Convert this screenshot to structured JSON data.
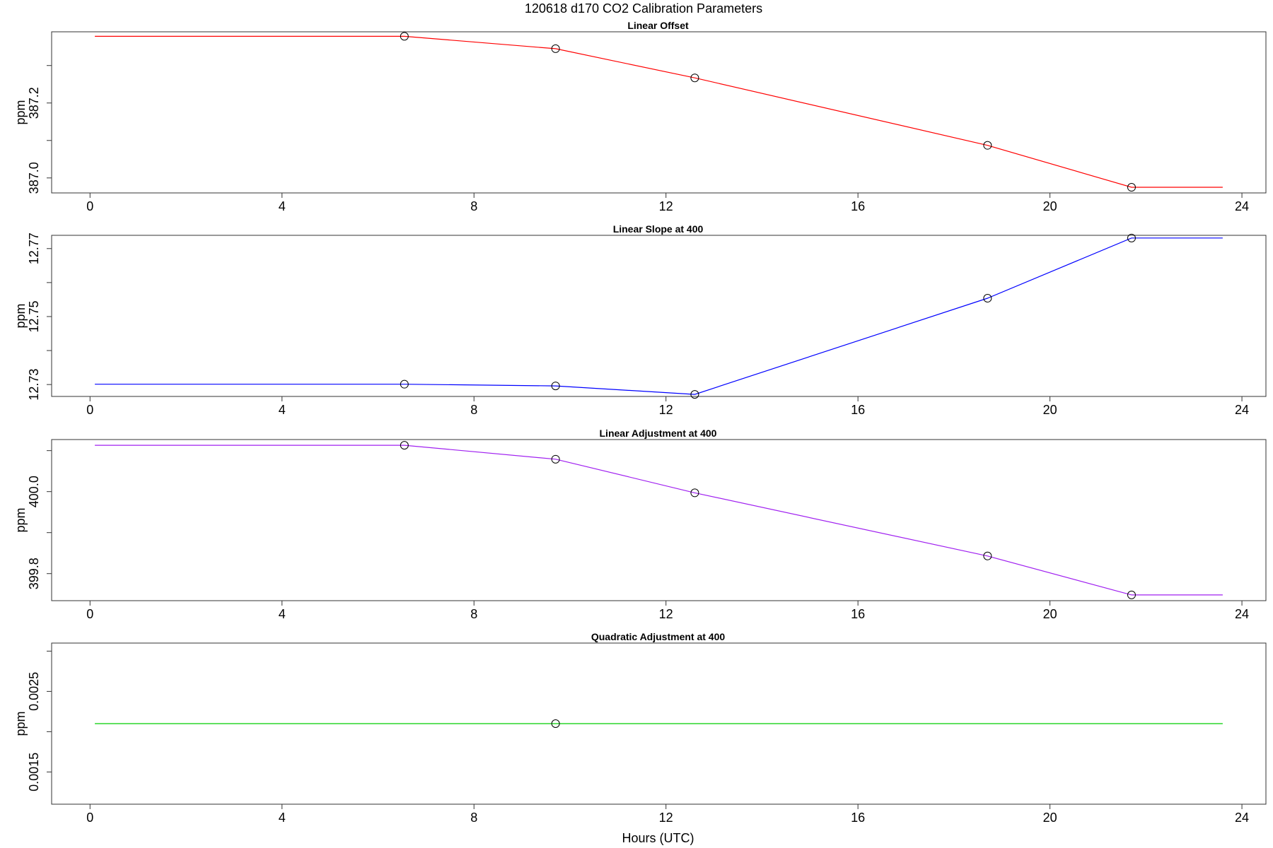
{
  "figure_title": "120618   d170   CO2 Calibration Parameters",
  "chart_data": [
    {
      "type": "line",
      "title": "Linear Offset",
      "xlabel": "",
      "ylabel": "ppm",
      "xlim": [
        -0.8,
        24.5
      ],
      "ylim": [
        386.96,
        387.39
      ],
      "xticks": [
        0,
        4,
        8,
        12,
        16,
        20,
        24
      ],
      "yticks_labeled": [
        {
          "value": 387.0,
          "label": "387.0"
        },
        {
          "value": 387.2,
          "label": "387.2"
        }
      ],
      "yticks_minor": [
        387.1,
        387.3
      ],
      "color": "#ff0000",
      "line_x": [
        0.1,
        6.55,
        9.7,
        12.6,
        18.7,
        21.7,
        23.6
      ],
      "line_y": [
        387.378,
        387.378,
        387.345,
        387.267,
        387.087,
        386.975,
        386.975
      ],
      "points": [
        {
          "x": 6.55,
          "y": 387.378
        },
        {
          "x": 9.7,
          "y": 387.345
        },
        {
          "x": 12.6,
          "y": 387.267
        },
        {
          "x": 18.7,
          "y": 387.087
        },
        {
          "x": 21.7,
          "y": 386.975
        }
      ]
    },
    {
      "type": "line",
      "title": "Linear Slope at 400",
      "xlabel": "",
      "ylabel": "ppm",
      "xlim": [
        -0.8,
        24.5
      ],
      "ylim": [
        12.7265,
        12.7739
      ],
      "xticks": [
        0,
        4,
        8,
        12,
        16,
        20,
        24
      ],
      "yticks_labeled": [
        {
          "value": 12.73,
          "label": "12.73"
        },
        {
          "value": 12.75,
          "label": "12.75"
        },
        {
          "value": 12.77,
          "label": "12.77"
        }
      ],
      "yticks_minor": [
        12.74,
        12.76
      ],
      "color": "#0000ff",
      "line_x": [
        0.1,
        6.55,
        9.7,
        12.6,
        18.7,
        21.7,
        23.6
      ],
      "line_y": [
        12.7301,
        12.7301,
        12.7296,
        12.7271,
        12.7554,
        12.7731,
        12.7731
      ],
      "points": [
        {
          "x": 6.55,
          "y": 12.7301
        },
        {
          "x": 9.7,
          "y": 12.7296
        },
        {
          "x": 12.6,
          "y": 12.7271
        },
        {
          "x": 18.7,
          "y": 12.7554
        },
        {
          "x": 21.7,
          "y": 12.7731
        }
      ]
    },
    {
      "type": "line",
      "title": "Linear Adjustment at 400",
      "xlabel": "",
      "ylabel": "ppm",
      "xlim": [
        -0.8,
        24.5
      ],
      "ylim": [
        399.734,
        400.127
      ],
      "xticks": [
        0,
        4,
        8,
        12,
        16,
        20,
        24
      ],
      "yticks_labeled": [
        {
          "value": 399.8,
          "label": "399.8"
        },
        {
          "value": 400.0,
          "label": "400.0"
        }
      ],
      "yticks_minor": [
        399.9,
        400.1
      ],
      "color": "#a020f0",
      "line_x": [
        0.1,
        6.55,
        9.7,
        12.6,
        18.7,
        21.7,
        23.6
      ],
      "line_y": [
        400.113,
        400.113,
        400.079,
        399.997,
        399.843,
        399.748,
        399.748
      ],
      "points": [
        {
          "x": 6.55,
          "y": 400.113
        },
        {
          "x": 9.7,
          "y": 400.079
        },
        {
          "x": 12.6,
          "y": 399.997
        },
        {
          "x": 18.7,
          "y": 399.843
        },
        {
          "x": 21.7,
          "y": 399.748
        }
      ]
    },
    {
      "type": "line",
      "title": "Quadratic Adjustment at 400",
      "xlabel": "Hours (UTC)",
      "ylabel": "ppm",
      "xlim": [
        -0.8,
        24.5
      ],
      "ylim": [
        0.0011,
        0.0031
      ],
      "xticks": [
        0,
        4,
        8,
        12,
        16,
        20,
        24
      ],
      "yticks_labeled": [
        {
          "value": 0.0015,
          "label": "0.0015"
        },
        {
          "value": 0.0025,
          "label": "0.0025"
        }
      ],
      "yticks_minor": [
        0.002,
        0.003
      ],
      "color": "#00cd00",
      "line_x": [
        0.1,
        23.6
      ],
      "line_y": [
        0.0021,
        0.0021
      ],
      "points": [
        {
          "x": 9.7,
          "y": 0.0021
        }
      ]
    }
  ]
}
